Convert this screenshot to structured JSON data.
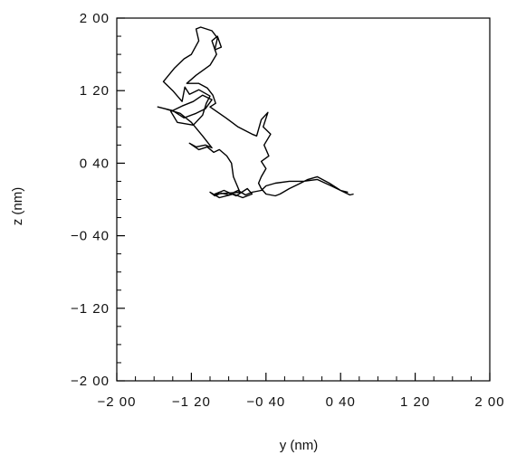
{
  "chart_data": {
    "type": "line",
    "title": "",
    "xlabel": "y (nm)",
    "ylabel": "z (nm)",
    "xlim": [
      -200,
      200
    ],
    "ylim": [
      -200,
      200
    ],
    "xticks": [
      -200,
      -120,
      -40,
      40,
      120,
      200
    ],
    "xtick_labels": [
      "−2 00",
      "−1 20",
      "−0 40",
      "0 40",
      "1 20",
      "2 00"
    ],
    "yticks": [
      -200,
      -120,
      -40,
      40,
      120,
      200
    ],
    "ytick_labels": [
      "−2 00",
      "−1 20",
      "−0 40",
      "0 40",
      "1 20",
      "2 00"
    ],
    "minor_tick_step": 20,
    "grid": false,
    "line_color": "#000000",
    "series": [
      {
        "points": [
          [
            48,
            8
          ],
          [
            40,
            10
          ],
          [
            30,
            15
          ],
          [
            15,
            22
          ],
          [
            0,
            20
          ],
          [
            -15,
            20
          ],
          [
            -30,
            18
          ],
          [
            -40,
            15
          ],
          [
            -45,
            10
          ],
          [
            -55,
            8
          ],
          [
            -62,
            5
          ],
          [
            -70,
            10
          ],
          [
            -80,
            5
          ],
          [
            -88,
            7
          ],
          [
            -95,
            4
          ],
          [
            -100,
            8
          ],
          [
            -90,
            2
          ],
          [
            -75,
            6
          ],
          [
            -65,
            2
          ],
          [
            -55,
            6
          ],
          [
            -60,
            12
          ],
          [
            -72,
            4
          ],
          [
            -85,
            10
          ],
          [
            -95,
            6
          ],
          [
            -68,
            8
          ],
          [
            -75,
            25
          ],
          [
            -77,
            40
          ],
          [
            -82,
            48
          ],
          [
            -90,
            55
          ],
          [
            -96,
            52
          ],
          [
            -103,
            58
          ],
          [
            -112,
            55
          ],
          [
            -122,
            62
          ],
          [
            -115,
            58
          ],
          [
            -105,
            60
          ],
          [
            -98,
            57
          ],
          [
            -108,
            70
          ],
          [
            -120,
            85
          ],
          [
            -132,
            95
          ],
          [
            -148,
            100
          ],
          [
            -156,
            102
          ],
          [
            -140,
            98
          ],
          [
            -128,
            90
          ],
          [
            -115,
            95
          ],
          [
            -105,
            100
          ],
          [
            -98,
            110
          ],
          [
            -108,
            115
          ],
          [
            -118,
            108
          ],
          [
            -130,
            103
          ],
          [
            -142,
            97
          ],
          [
            -135,
            85
          ],
          [
            -118,
            82
          ],
          [
            -108,
            93
          ],
          [
            -104,
            106
          ],
          [
            -100,
            114
          ],
          [
            -112,
            121
          ],
          [
            -122,
            116
          ],
          [
            -127,
            124
          ],
          [
            -130,
            108
          ],
          [
            -140,
            120
          ],
          [
            -150,
            130
          ],
          [
            -138,
            145
          ],
          [
            -128,
            155
          ],
          [
            -120,
            160
          ],
          [
            -112,
            175
          ],
          [
            -115,
            188
          ],
          [
            -110,
            190
          ],
          [
            -98,
            186
          ],
          [
            -92,
            178
          ],
          [
            -95,
            165
          ],
          [
            -88,
            168
          ],
          [
            -92,
            180
          ],
          [
            -98,
            175
          ],
          [
            -93,
            160
          ],
          [
            -100,
            148
          ],
          [
            -115,
            137
          ],
          [
            -125,
            128
          ],
          [
            -112,
            128
          ],
          [
            -103,
            123
          ],
          [
            -97,
            115
          ],
          [
            -94,
            106
          ],
          [
            -100,
            102
          ],
          [
            -83,
            90
          ],
          [
            -70,
            80
          ],
          [
            -55,
            72
          ],
          [
            -50,
            70
          ],
          [
            -45,
            88
          ],
          [
            -38,
            96
          ],
          [
            -43,
            80
          ],
          [
            -35,
            72
          ],
          [
            -42,
            60
          ],
          [
            -37,
            48
          ],
          [
            -45,
            42
          ],
          [
            -40,
            34
          ],
          [
            -45,
            25
          ],
          [
            -48,
            18
          ],
          [
            -45,
            12
          ],
          [
            -40,
            6
          ],
          [
            -35,
            5
          ],
          [
            -30,
            4
          ],
          [
            -25,
            6
          ],
          [
            -15,
            12
          ],
          [
            -5,
            17
          ],
          [
            5,
            22
          ],
          [
            15,
            25
          ],
          [
            28,
            18
          ],
          [
            40,
            10
          ],
          [
            50,
            5
          ],
          [
            54,
            6
          ]
        ]
      }
    ]
  }
}
